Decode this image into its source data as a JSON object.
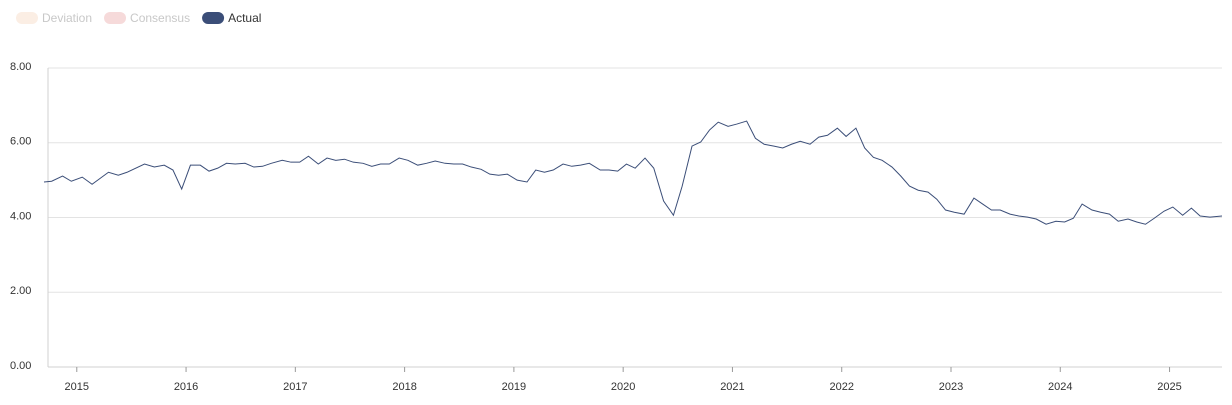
{
  "chart_data": {
    "type": "line",
    "inactive_series": [
      {
        "name": "Deviation",
        "color": "#fbeee4"
      },
      {
        "name": "Consensus",
        "color": "#f6dada"
      }
    ],
    "x": [
      2014.7,
      2014.77,
      2014.87,
      2014.95,
      2015.05,
      2015.14,
      2015.29,
      2015.38,
      2015.46,
      2015.62,
      2015.71,
      2015.8,
      2015.88,
      2015.96,
      2016.04,
      2016.13,
      2016.21,
      2016.29,
      2016.37,
      2016.45,
      2016.54,
      2016.62,
      2016.7,
      2016.78,
      2016.88,
      2016.96,
      2017.04,
      2017.12,
      2017.21,
      2017.29,
      2017.37,
      2017.45,
      2017.53,
      2017.62,
      2017.7,
      2017.78,
      2017.86,
      2017.95,
      2018.03,
      2018.12,
      2018.2,
      2018.28,
      2018.37,
      2018.45,
      2018.53,
      2018.61,
      2018.7,
      2018.78,
      2018.86,
      2018.94,
      2019.03,
      2019.12,
      2019.2,
      2019.28,
      2019.36,
      2019.45,
      2019.53,
      2019.61,
      2019.69,
      2019.79,
      2019.87,
      2019.95,
      2020.03,
      2020.11,
      2020.2,
      2020.28,
      2020.37,
      2020.46,
      2020.54,
      2020.63,
      2020.71,
      2020.79,
      2020.87,
      2020.96,
      2021.04,
      2021.13,
      2021.21,
      2021.29,
      2021.38,
      2021.46,
      2021.54,
      2021.62,
      2021.71,
      2021.79,
      2021.87,
      2021.96,
      2022.04,
      2022.13,
      2022.21,
      2022.29,
      2022.37,
      2022.46,
      2022.54,
      2022.62,
      2022.7,
      2022.79,
      2022.87,
      2022.95,
      2023.03,
      2023.12,
      2023.21,
      2023.29,
      2023.37,
      2023.45,
      2023.54,
      2023.62,
      2023.7,
      2023.78,
      2023.87,
      2023.96,
      2024.04,
      2024.12,
      2024.2,
      2024.29,
      2024.37,
      2024.45,
      2024.53,
      2024.62,
      2024.7,
      2024.78,
      2024.86,
      2024.95,
      2025.03,
      2025.12,
      2025.2,
      2025.28,
      2025.37,
      2025.48
    ],
    "series": [
      {
        "name": "Actual",
        "color": "#3b4e78",
        "values": [
          4.95,
          4.97,
          5.11,
          4.97,
          5.08,
          4.89,
          5.21,
          5.13,
          5.21,
          5.43,
          5.35,
          5.4,
          5.27,
          4.76,
          5.4,
          5.4,
          5.24,
          5.32,
          5.45,
          5.43,
          5.45,
          5.35,
          5.37,
          5.45,
          5.53,
          5.48,
          5.48,
          5.64,
          5.43,
          5.59,
          5.53,
          5.56,
          5.48,
          5.45,
          5.37,
          5.43,
          5.43,
          5.59,
          5.53,
          5.4,
          5.45,
          5.51,
          5.45,
          5.43,
          5.43,
          5.35,
          5.29,
          5.16,
          5.13,
          5.16,
          5.0,
          4.95,
          5.27,
          5.21,
          5.27,
          5.43,
          5.37,
          5.4,
          5.45,
          5.27,
          5.27,
          5.24,
          5.43,
          5.32,
          5.59,
          5.32,
          4.44,
          4.06,
          4.84,
          5.91,
          6.02,
          6.34,
          6.55,
          6.44,
          6.5,
          6.58,
          6.12,
          5.96,
          5.91,
          5.86,
          5.96,
          6.04,
          5.96,
          6.15,
          6.2,
          6.39,
          6.17,
          6.39,
          5.86,
          5.61,
          5.53,
          5.35,
          5.11,
          4.84,
          4.73,
          4.68,
          4.49,
          4.2,
          4.14,
          4.09,
          4.52,
          4.36,
          4.2,
          4.2,
          4.09,
          4.04,
          4.01,
          3.96,
          3.82,
          3.9,
          3.88,
          3.98,
          4.36,
          4.2,
          4.14,
          4.09,
          3.9,
          3.96,
          3.88,
          3.82,
          3.98,
          4.17,
          4.28,
          4.06,
          4.25,
          4.04,
          4.01,
          4.04
        ]
      }
    ],
    "xlim": [
      2014.7,
      2025.48
    ],
    "xticks": [
      2015,
      2016,
      2017,
      2018,
      2019,
      2020,
      2021,
      2022,
      2023,
      2024,
      2025
    ],
    "ylim": [
      0,
      8
    ],
    "yticks": [
      {
        "value": 0,
        "label": "0.00"
      },
      {
        "value": 2,
        "label": "2.00"
      },
      {
        "value": 4,
        "label": "4.00"
      },
      {
        "value": 6,
        "label": "6.00"
      },
      {
        "value": 8,
        "label": "8.00"
      }
    ],
    "grid": true
  }
}
